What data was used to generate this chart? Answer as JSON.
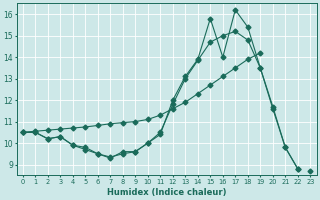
{
  "xlabel": "Humidex (Indice chaleur)",
  "xlim": [
    -0.5,
    23.5
  ],
  "ylim": [
    8.5,
    16.5
  ],
  "yticks": [
    9,
    10,
    11,
    12,
    13,
    14,
    15,
    16
  ],
  "xticks": [
    0,
    1,
    2,
    3,
    4,
    5,
    6,
    7,
    8,
    9,
    10,
    11,
    12,
    13,
    14,
    15,
    16,
    17,
    18,
    19,
    20,
    21,
    22,
    23
  ],
  "bg_color": "#cde8e8",
  "line_color": "#1a6b5a",
  "grid_color": "#b8d8d8",
  "line1_y": [
    10.5,
    10.5,
    10.2,
    10.3,
    9.9,
    9.8,
    9.5,
    9.3,
    9.6,
    9.6,
    10.0,
    10.4,
    12.0,
    13.1,
    13.9,
    15.8,
    14.0,
    16.2,
    15.4,
    13.5,
    11.7,
    9.8,
    8.8,
    null
  ],
  "line2_y": [
    10.5,
    10.5,
    10.2,
    10.3,
    9.9,
    9.7,
    9.5,
    9.35,
    9.5,
    9.6,
    10.0,
    10.5,
    11.8,
    13.0,
    13.85,
    14.7,
    15.0,
    15.2,
    14.8,
    13.5,
    11.6,
    9.8,
    8.8,
    null
  ],
  "line3_y": [
    10.5,
    10.55,
    10.6,
    10.65,
    10.7,
    10.75,
    10.82,
    10.9,
    10.95,
    11.0,
    11.1,
    11.3,
    11.6,
    11.9,
    12.3,
    12.7,
    13.1,
    13.5,
    13.9,
    14.2,
    null,
    null,
    null,
    8.7
  ]
}
